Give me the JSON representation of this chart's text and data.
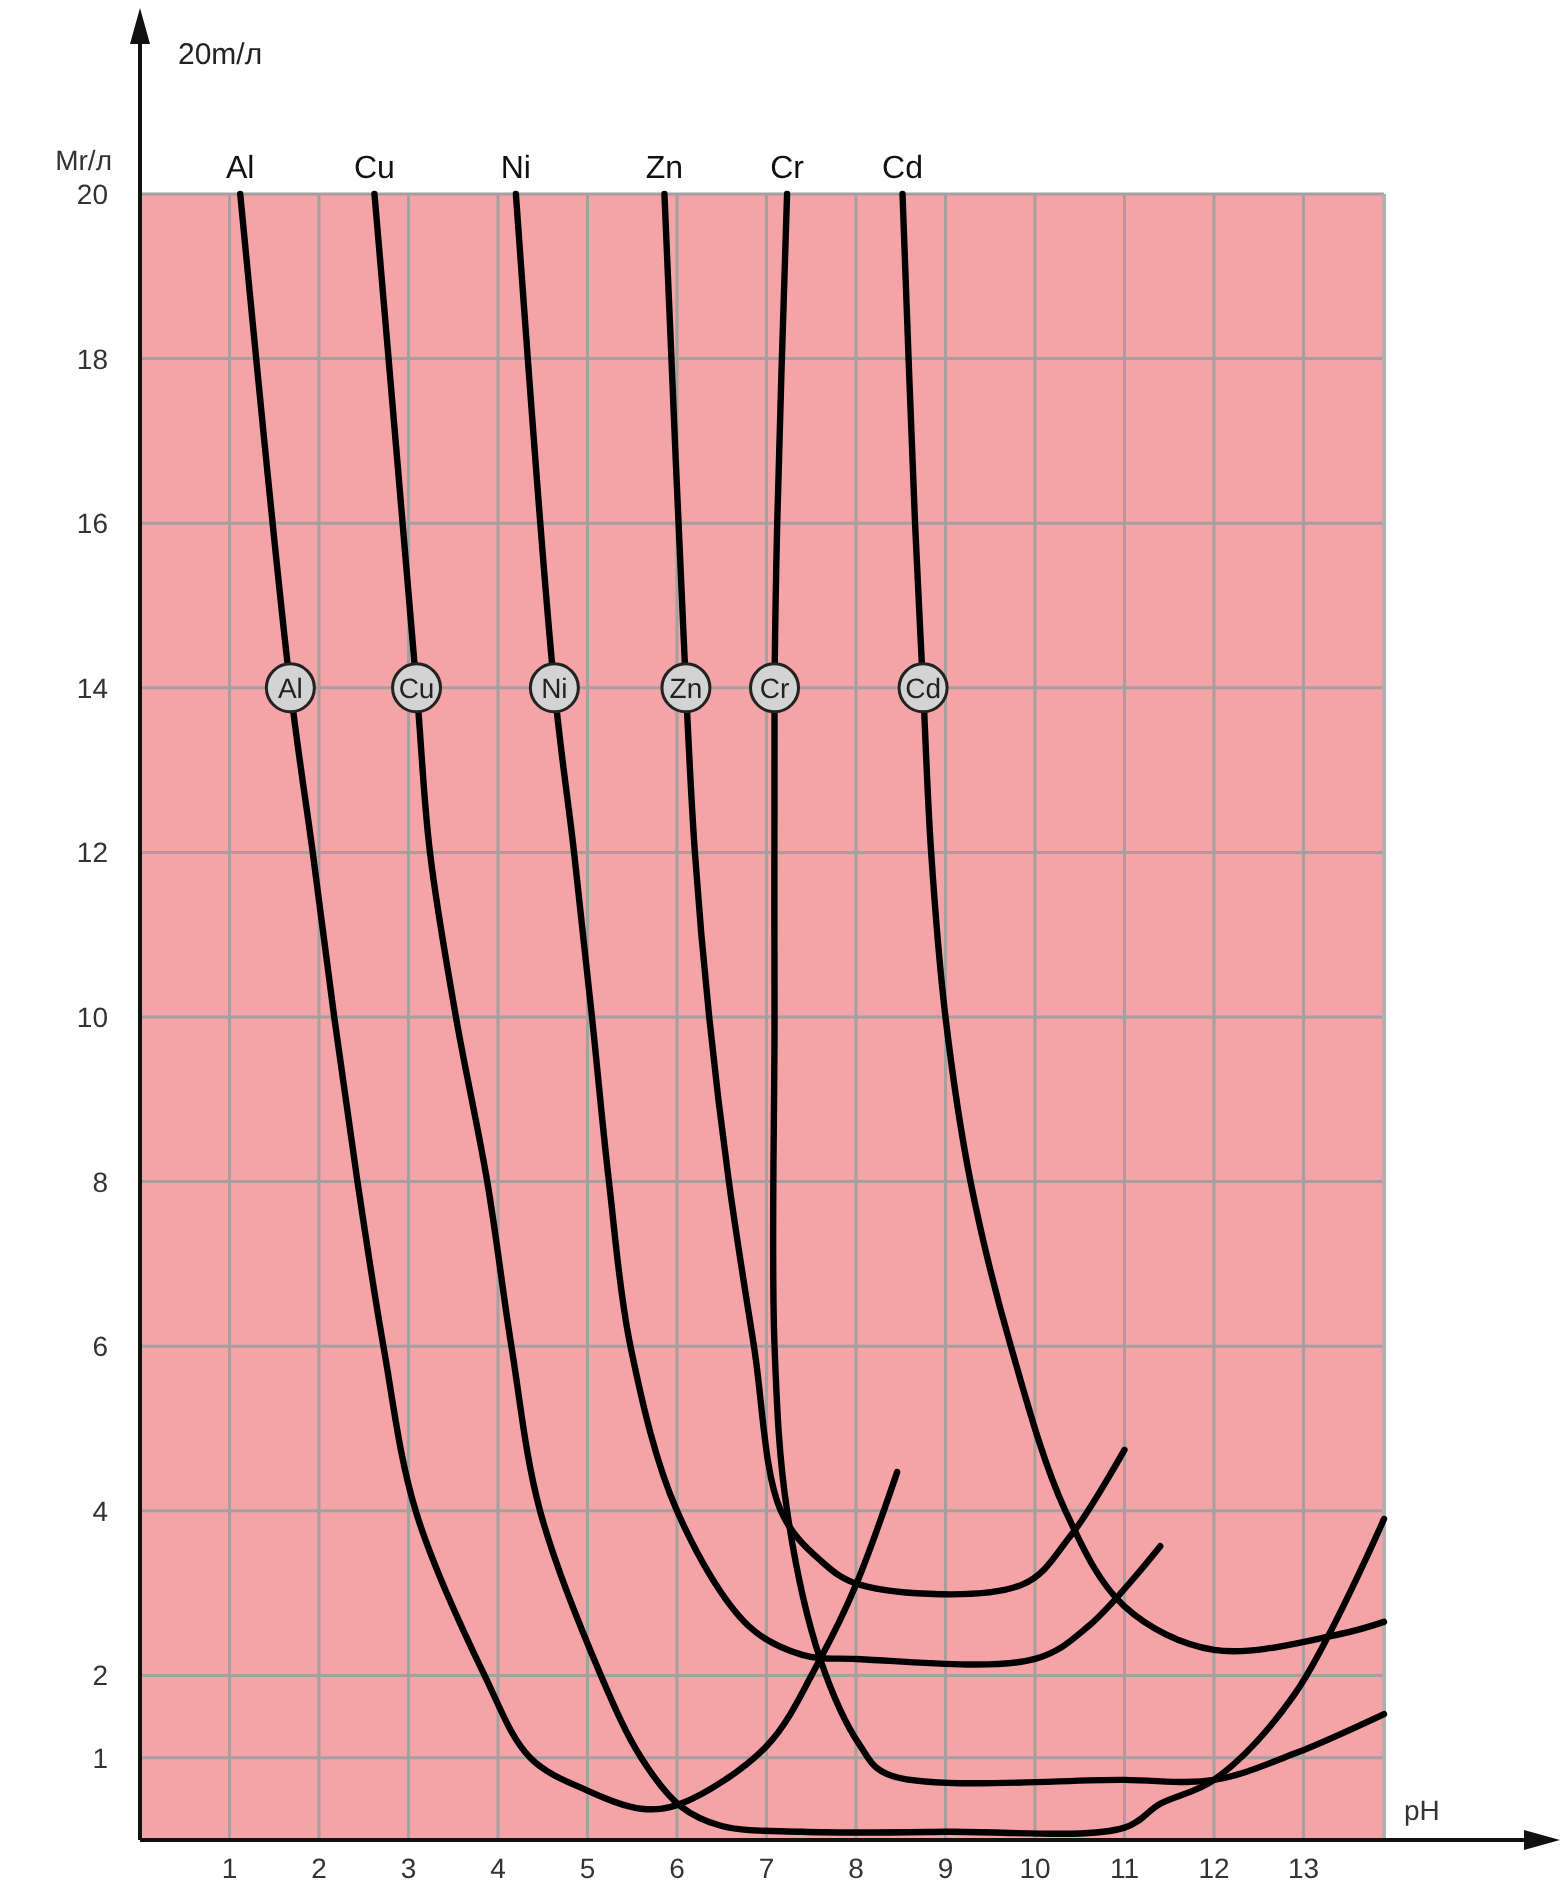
{
  "chart_data": {
    "type": "line",
    "xlabel": "pH",
    "ylabel": "Mr/л",
    "xlim": [
      0,
      13.9
    ],
    "ylim": [
      0,
      20
    ],
    "xticks": [
      1,
      2,
      3,
      4,
      5,
      6,
      7,
      8,
      9,
      10,
      11,
      12,
      13
    ],
    "yticks": [
      1,
      2,
      4,
      6,
      8,
      10,
      12,
      14,
      16,
      18,
      20
    ],
    "grid": true,
    "marker": "none",
    "series": [
      {
        "name": "Al",
        "color": "#000000",
        "x": [
          1.12,
          1.68,
          1.93,
          2.17,
          2.43,
          2.72,
          3.08,
          3.85,
          4.36,
          5.0,
          5.6,
          6.04,
          7.0,
          7.6,
          8.0,
          8.46
        ],
        "values": [
          20,
          14,
          12,
          10,
          8,
          6,
          4,
          2,
          1,
          0.6,
          0.38,
          0.44,
          1.14,
          2.2,
          3.1,
          4.47
        ]
      },
      {
        "name": "Cu",
        "color": "#000000",
        "x": [
          2.62,
          3.09,
          3.24,
          3.53,
          3.88,
          4.15,
          4.47,
          5.15,
          5.6,
          6.04,
          6.5,
          7.4,
          9,
          11,
          11.4,
          12.0,
          12.9,
          13.9
        ],
        "values": [
          20,
          14,
          12,
          10,
          8,
          6,
          4,
          2,
          1,
          0.41,
          0.17,
          0.1,
          0.1,
          0.15,
          0.44,
          0.73,
          1.77,
          3.9
        ]
      },
      {
        "name": "Ni",
        "color": "#000000",
        "x": [
          4.2,
          4.63,
          4.85,
          5.05,
          5.24,
          5.48,
          6.0,
          6.8,
          7.4,
          8,
          10,
          10.6,
          11.4
        ],
        "values": [
          20,
          14,
          12,
          10,
          8,
          6,
          4,
          2.6,
          2.25,
          2.2,
          2.2,
          2.6,
          3.57
        ]
      },
      {
        "name": "Zn",
        "color": "#000000",
        "x": [
          5.86,
          6.1,
          6.2,
          6.36,
          6.58,
          6.86,
          7.16,
          7.6,
          8.05,
          9.85,
          10.4,
          11.0
        ],
        "values": [
          20,
          14,
          12,
          10,
          8,
          6,
          4,
          3.4,
          3.1,
          3.1,
          3.7,
          4.74
        ]
      },
      {
        "name": "Cr",
        "color": "#000000",
        "x": [
          7.23,
          7.12,
          7.09,
          7.09,
          7.09,
          7.23,
          7.6,
          8.05,
          8.35,
          11.0,
          12.0,
          12.9,
          13.9
        ],
        "values": [
          20,
          16,
          14,
          10,
          6,
          4,
          2.2,
          1.14,
          0.8,
          0.73,
          0.73,
          1.05,
          1.53
        ]
      },
      {
        "name": "Cd",
        "color": "#000000",
        "x": [
          8.52,
          8.66,
          8.75,
          8.84,
          9.0,
          9.28,
          9.73,
          10.34,
          11.0,
          12.0,
          13.4,
          13.9
        ],
        "values": [
          20,
          16,
          14,
          12,
          10,
          8,
          6,
          4,
          2.84,
          2.31,
          2.5,
          2.65
        ]
      }
    ],
    "annotations": [
      "20m/л",
      {
        "text": "Al",
        "x": 1.68,
        "y": 14
      },
      {
        "text": "Cu",
        "x": 3.09,
        "y": 14
      },
      {
        "text": "Ni",
        "x": 4.63,
        "y": 14
      },
      {
        "text": "Zn",
        "x": 6.1,
        "y": 14
      },
      {
        "text": "Cr",
        "x": 7.09,
        "y": 14
      },
      {
        "text": "Cd",
        "x": 8.75,
        "y": 14
      }
    ]
  }
}
